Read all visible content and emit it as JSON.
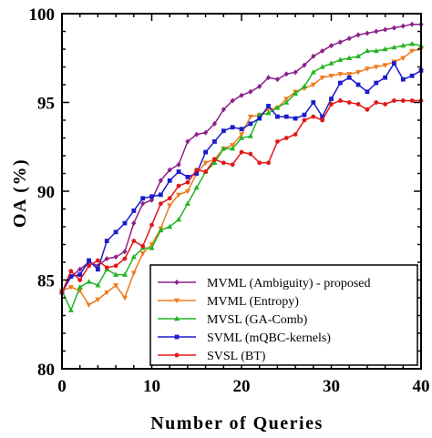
{
  "chart_data": {
    "type": "line",
    "title": "",
    "xlabel": "Number of Queries",
    "ylabel": "OA (%)",
    "xlim": [
      0,
      40
    ],
    "ylim": [
      80,
      100
    ],
    "xticks": [
      0,
      10,
      20,
      30,
      40
    ],
    "yticks": [
      80,
      85,
      90,
      95,
      100
    ],
    "grid": false,
    "legend_position": "bottom-right",
    "x": [
      0,
      1,
      2,
      3,
      4,
      5,
      6,
      7,
      8,
      9,
      10,
      11,
      12,
      13,
      14,
      15,
      16,
      17,
      18,
      19,
      20,
      21,
      22,
      23,
      24,
      25,
      26,
      27,
      28,
      29,
      30,
      31,
      32,
      33,
      34,
      35,
      36,
      37,
      38,
      39,
      40
    ],
    "series": [
      {
        "name": "MVML (Ambiguity) - proposed",
        "color": "#8b1f8b",
        "marker": "diamond",
        "values": [
          84.3,
          85.2,
          85.6,
          86.0,
          85.8,
          86.2,
          86.3,
          86.6,
          88.2,
          89.3,
          89.5,
          90.6,
          91.2,
          91.5,
          92.8,
          93.2,
          93.3,
          93.8,
          94.6,
          95.1,
          95.4,
          95.6,
          95.9,
          96.4,
          96.3,
          96.6,
          96.7,
          97.1,
          97.6,
          97.9,
          98.2,
          98.4,
          98.6,
          98.8,
          98.9,
          99.0,
          99.1,
          99.2,
          99.3,
          99.4,
          99.4
        ]
      },
      {
        "name": "MVML (Entropy)",
        "color": "#f07a1a",
        "marker": "triangle-down",
        "values": [
          84.4,
          84.6,
          84.4,
          83.6,
          83.9,
          84.3,
          84.7,
          84.0,
          85.4,
          86.5,
          87.0,
          87.9,
          89.2,
          89.8,
          90.0,
          91.0,
          91.6,
          91.8,
          92.4,
          92.6,
          93.2,
          94.2,
          94.3,
          94.6,
          94.7,
          95.2,
          95.6,
          95.8,
          96.0,
          96.4,
          96.5,
          96.6,
          96.6,
          96.7,
          96.9,
          97.0,
          97.1,
          97.3,
          97.5,
          97.9,
          98.0
        ]
      },
      {
        "name": "MVSL (GA-Comb)",
        "color": "#22b422",
        "marker": "triangle-up",
        "values": [
          84.4,
          83.3,
          84.6,
          84.9,
          84.7,
          85.6,
          85.3,
          85.3,
          86.3,
          86.8,
          86.8,
          87.8,
          88.0,
          88.4,
          89.3,
          90.2,
          91.1,
          91.6,
          92.4,
          92.4,
          93.0,
          93.1,
          94.3,
          94.4,
          94.7,
          95.0,
          95.5,
          95.9,
          96.7,
          97.0,
          97.2,
          97.4,
          97.5,
          97.6,
          97.9,
          97.9,
          98.0,
          98.1,
          98.2,
          98.3,
          98.2
        ]
      },
      {
        "name": "SVML (mQBC-kernels)",
        "color": "#1c1ccc",
        "marker": "square",
        "values": [
          84.3,
          85.2,
          85.3,
          86.1,
          85.6,
          87.2,
          87.7,
          88.2,
          88.9,
          89.6,
          89.7,
          89.8,
          90.6,
          91.1,
          90.8,
          91.0,
          92.2,
          92.8,
          93.4,
          93.6,
          93.5,
          93.8,
          94.1,
          94.8,
          94.2,
          94.2,
          94.1,
          94.3,
          95.0,
          94.2,
          95.2,
          96.1,
          96.4,
          96.0,
          95.6,
          96.1,
          96.4,
          97.2,
          96.3,
          96.5,
          96.8
        ]
      },
      {
        "name": "SVSL (BT)",
        "color": "#e01818",
        "marker": "circle",
        "values": [
          84.3,
          85.5,
          85.0,
          85.8,
          86.1,
          85.7,
          85.8,
          86.2,
          87.2,
          86.9,
          88.1,
          89.3,
          89.6,
          90.3,
          90.5,
          91.2,
          91.1,
          91.8,
          91.6,
          91.5,
          92.2,
          92.1,
          91.6,
          91.6,
          92.8,
          93.0,
          93.2,
          94.0,
          94.2,
          94.0,
          94.9,
          95.1,
          95.0,
          94.9,
          94.6,
          95.0,
          94.9,
          95.1,
          95.1,
          95.1,
          95.1
        ]
      }
    ]
  }
}
